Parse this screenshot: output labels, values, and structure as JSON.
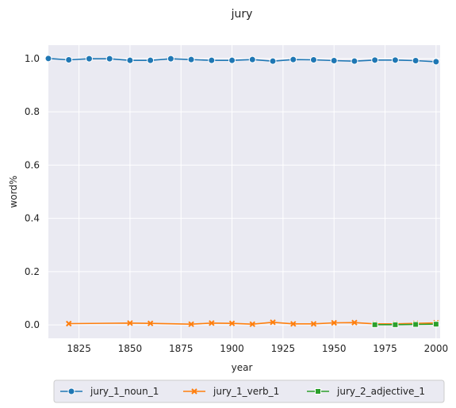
{
  "chart_data": {
    "type": "line",
    "title": "jury",
    "xlabel": "year",
    "ylabel": "word%",
    "xlim": [
      1810,
      2002
    ],
    "ylim": [
      -0.05,
      1.05
    ],
    "xticks": [
      1825,
      1850,
      1875,
      1900,
      1925,
      1950,
      1975,
      2000
    ],
    "yticks": [
      0.0,
      0.2,
      0.4,
      0.6,
      0.8,
      1.0
    ],
    "xtick_labels": [
      "1825",
      "1850",
      "1875",
      "1900",
      "1925",
      "1950",
      "1975",
      "2000"
    ],
    "ytick_labels": [
      "0.0",
      "0.2",
      "0.4",
      "0.6",
      "0.8",
      "1.0"
    ],
    "grid": true,
    "legend": "bottom",
    "series": [
      {
        "name": "jury_1_noun_1",
        "color": "#1f77b4",
        "marker": "circle",
        "x": [
          1810,
          1820,
          1830,
          1840,
          1850,
          1860,
          1870,
          1880,
          1890,
          1900,
          1910,
          1920,
          1930,
          1940,
          1950,
          1960,
          1970,
          1980,
          1990,
          2000
        ],
        "y": [
          1.0,
          0.995,
          0.999,
          0.999,
          0.993,
          0.993,
          0.999,
          0.996,
          0.993,
          0.993,
          0.996,
          0.99,
          0.996,
          0.995,
          0.992,
          0.99,
          0.994,
          0.994,
          0.992,
          0.988
        ]
      },
      {
        "name": "jury_1_verb_1",
        "color": "#ff7f0e",
        "marker": "x",
        "x": [
          1820,
          1850,
          1860,
          1880,
          1890,
          1900,
          1910,
          1920,
          1930,
          1940,
          1950,
          1960,
          1970,
          1980,
          1990,
          2000
        ],
        "y": [
          0.005,
          0.007,
          0.006,
          0.003,
          0.007,
          0.006,
          0.003,
          0.01,
          0.004,
          0.004,
          0.008,
          0.009,
          0.004,
          0.004,
          0.006,
          0.008
        ]
      },
      {
        "name": "jury_2_adjective_1",
        "color": "#2ca02c",
        "marker": "square",
        "x": [
          1970,
          1980,
          1990,
          2000
        ],
        "y": [
          0.001,
          0.001,
          0.002,
          0.003
        ]
      }
    ]
  }
}
